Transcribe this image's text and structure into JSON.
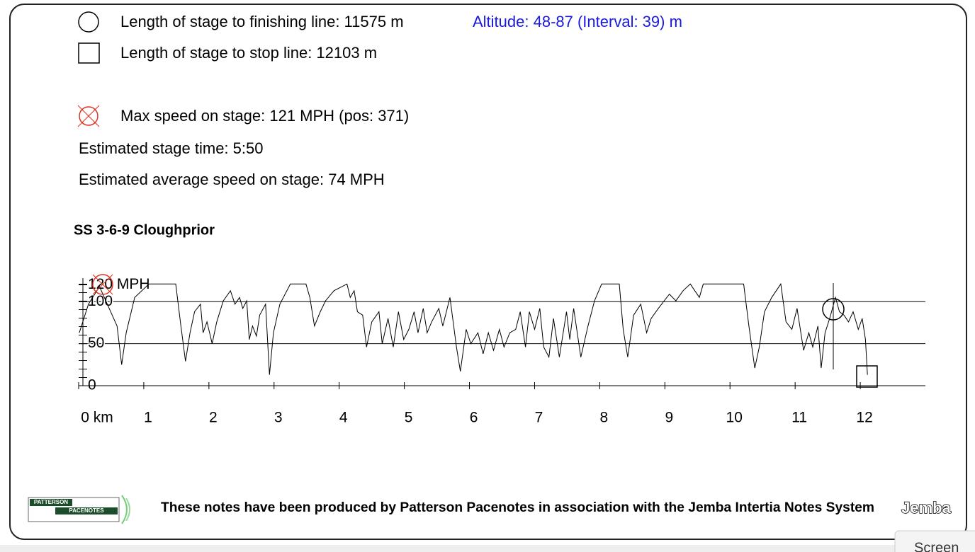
{
  "legend": {
    "finish": "Length of stage to finishing line: 11575 m",
    "altitude": "Altitude: 48-87 (Interval: 39) m",
    "stop": "Length of stage to stop line: 12103 m",
    "max_speed": "Max speed on stage: 121 MPH (pos: 371)",
    "stage_time": "Estimated stage time: 5:50",
    "avg_speed": "Estimated average speed on stage: 74 MPH"
  },
  "chart_data": {
    "type": "line",
    "title": "SS 3-6-9 Cloughprior",
    "x": [
      0.01,
      0.15,
      0.32,
      0.59,
      0.66,
      0.73,
      0.86,
      1.08,
      1.49,
      1.57,
      1.64,
      1.71,
      1.78,
      1.87,
      1.91,
      1.97,
      2.01,
      2.05,
      2.12,
      2.22,
      2.33,
      2.4,
      2.47,
      2.52,
      2.58,
      2.62,
      2.67,
      2.73,
      2.78,
      2.87,
      2.93,
      2.99,
      3.09,
      3.25,
      3.49,
      3.55,
      3.62,
      3.71,
      3.79,
      3.92,
      4.12,
      4.17,
      4.23,
      4.28,
      4.36,
      4.42,
      4.5,
      4.61,
      4.66,
      4.75,
      4.83,
      4.91,
      4.99,
      5.07,
      5.15,
      5.21,
      5.29,
      5.35,
      5.42,
      5.53,
      5.59,
      5.7,
      5.8,
      5.86,
      5.95,
      6.02,
      6.13,
      6.21,
      6.29,
      6.37,
      6.46,
      6.53,
      6.62,
      6.71,
      6.78,
      6.86,
      6.92,
      7.0,
      7.08,
      7.14,
      7.22,
      7.29,
      7.38,
      7.49,
      7.54,
      7.6,
      7.71,
      7.82,
      7.92,
      8.03,
      8.3,
      8.36,
      8.43,
      8.52,
      8.63,
      8.72,
      8.79,
      8.9,
      9.07,
      9.17,
      9.28,
      9.39,
      9.53,
      9.59,
      9.66,
      10.21,
      10.29,
      10.38,
      10.45,
      10.53,
      10.64,
      10.78,
      10.86,
      10.95,
      11.03,
      11.13,
      11.21,
      11.27,
      11.35,
      11.4,
      11.46,
      11.53,
      11.62,
      11.68,
      11.75,
      11.82,
      11.89,
      11.97,
      12.03,
      12.08,
      12.11
    ],
    "series": [
      {
        "color": "#000000",
        "values": [
          63,
          97,
          118,
          71,
          25,
          63,
          105,
          121,
          121,
          71,
          29,
          63,
          88,
          97,
          63,
          76,
          63,
          50,
          76,
          101,
          113,
          97,
          105,
          92,
          101,
          55,
          71,
          59,
          84,
          97,
          13,
          63,
          97,
          121,
          121,
          105,
          71,
          88,
          101,
          113,
          121,
          105,
          113,
          88,
          84,
          46,
          76,
          88,
          50,
          80,
          46,
          88,
          55,
          67,
          88,
          63,
          92,
          63,
          76,
          92,
          71,
          105,
          46,
          17,
          67,
          50,
          63,
          38,
          63,
          42,
          67,
          46,
          63,
          67,
          88,
          46,
          88,
          67,
          92,
          46,
          34,
          80,
          34,
          88,
          55,
          92,
          34,
          71,
          101,
          121,
          121,
          67,
          34,
          84,
          97,
          63,
          80,
          92,
          109,
          101,
          113,
          121,
          105,
          121,
          121,
          121,
          71,
          21,
          46,
          88,
          105,
          121,
          76,
          67,
          92,
          42,
          63,
          46,
          71,
          21,
          63,
          80,
          105,
          88,
          84,
          76,
          88,
          67,
          80,
          55,
          13
        ]
      }
    ],
    "xlim": [
      0,
      13
    ],
    "xticks": [
      {
        "value": 0,
        "label": "0 km"
      },
      1,
      2,
      3,
      4,
      5,
      6,
      7,
      8,
      9,
      10,
      11,
      12
    ],
    "ylim": [
      0,
      128
    ],
    "yticks": [
      0,
      50,
      100,
      {
        "value": 120,
        "label": "120 MPH"
      }
    ],
    "grid": true
  },
  "footer": {
    "logo_top": "PATTERSON",
    "logo_bottom": "PACENOTES",
    "credit": "These notes have been produced by Patterson Pacenotes in association with the Jemba Intertia Notes System",
    "brand": "Jemba"
  },
  "button": "Screen"
}
